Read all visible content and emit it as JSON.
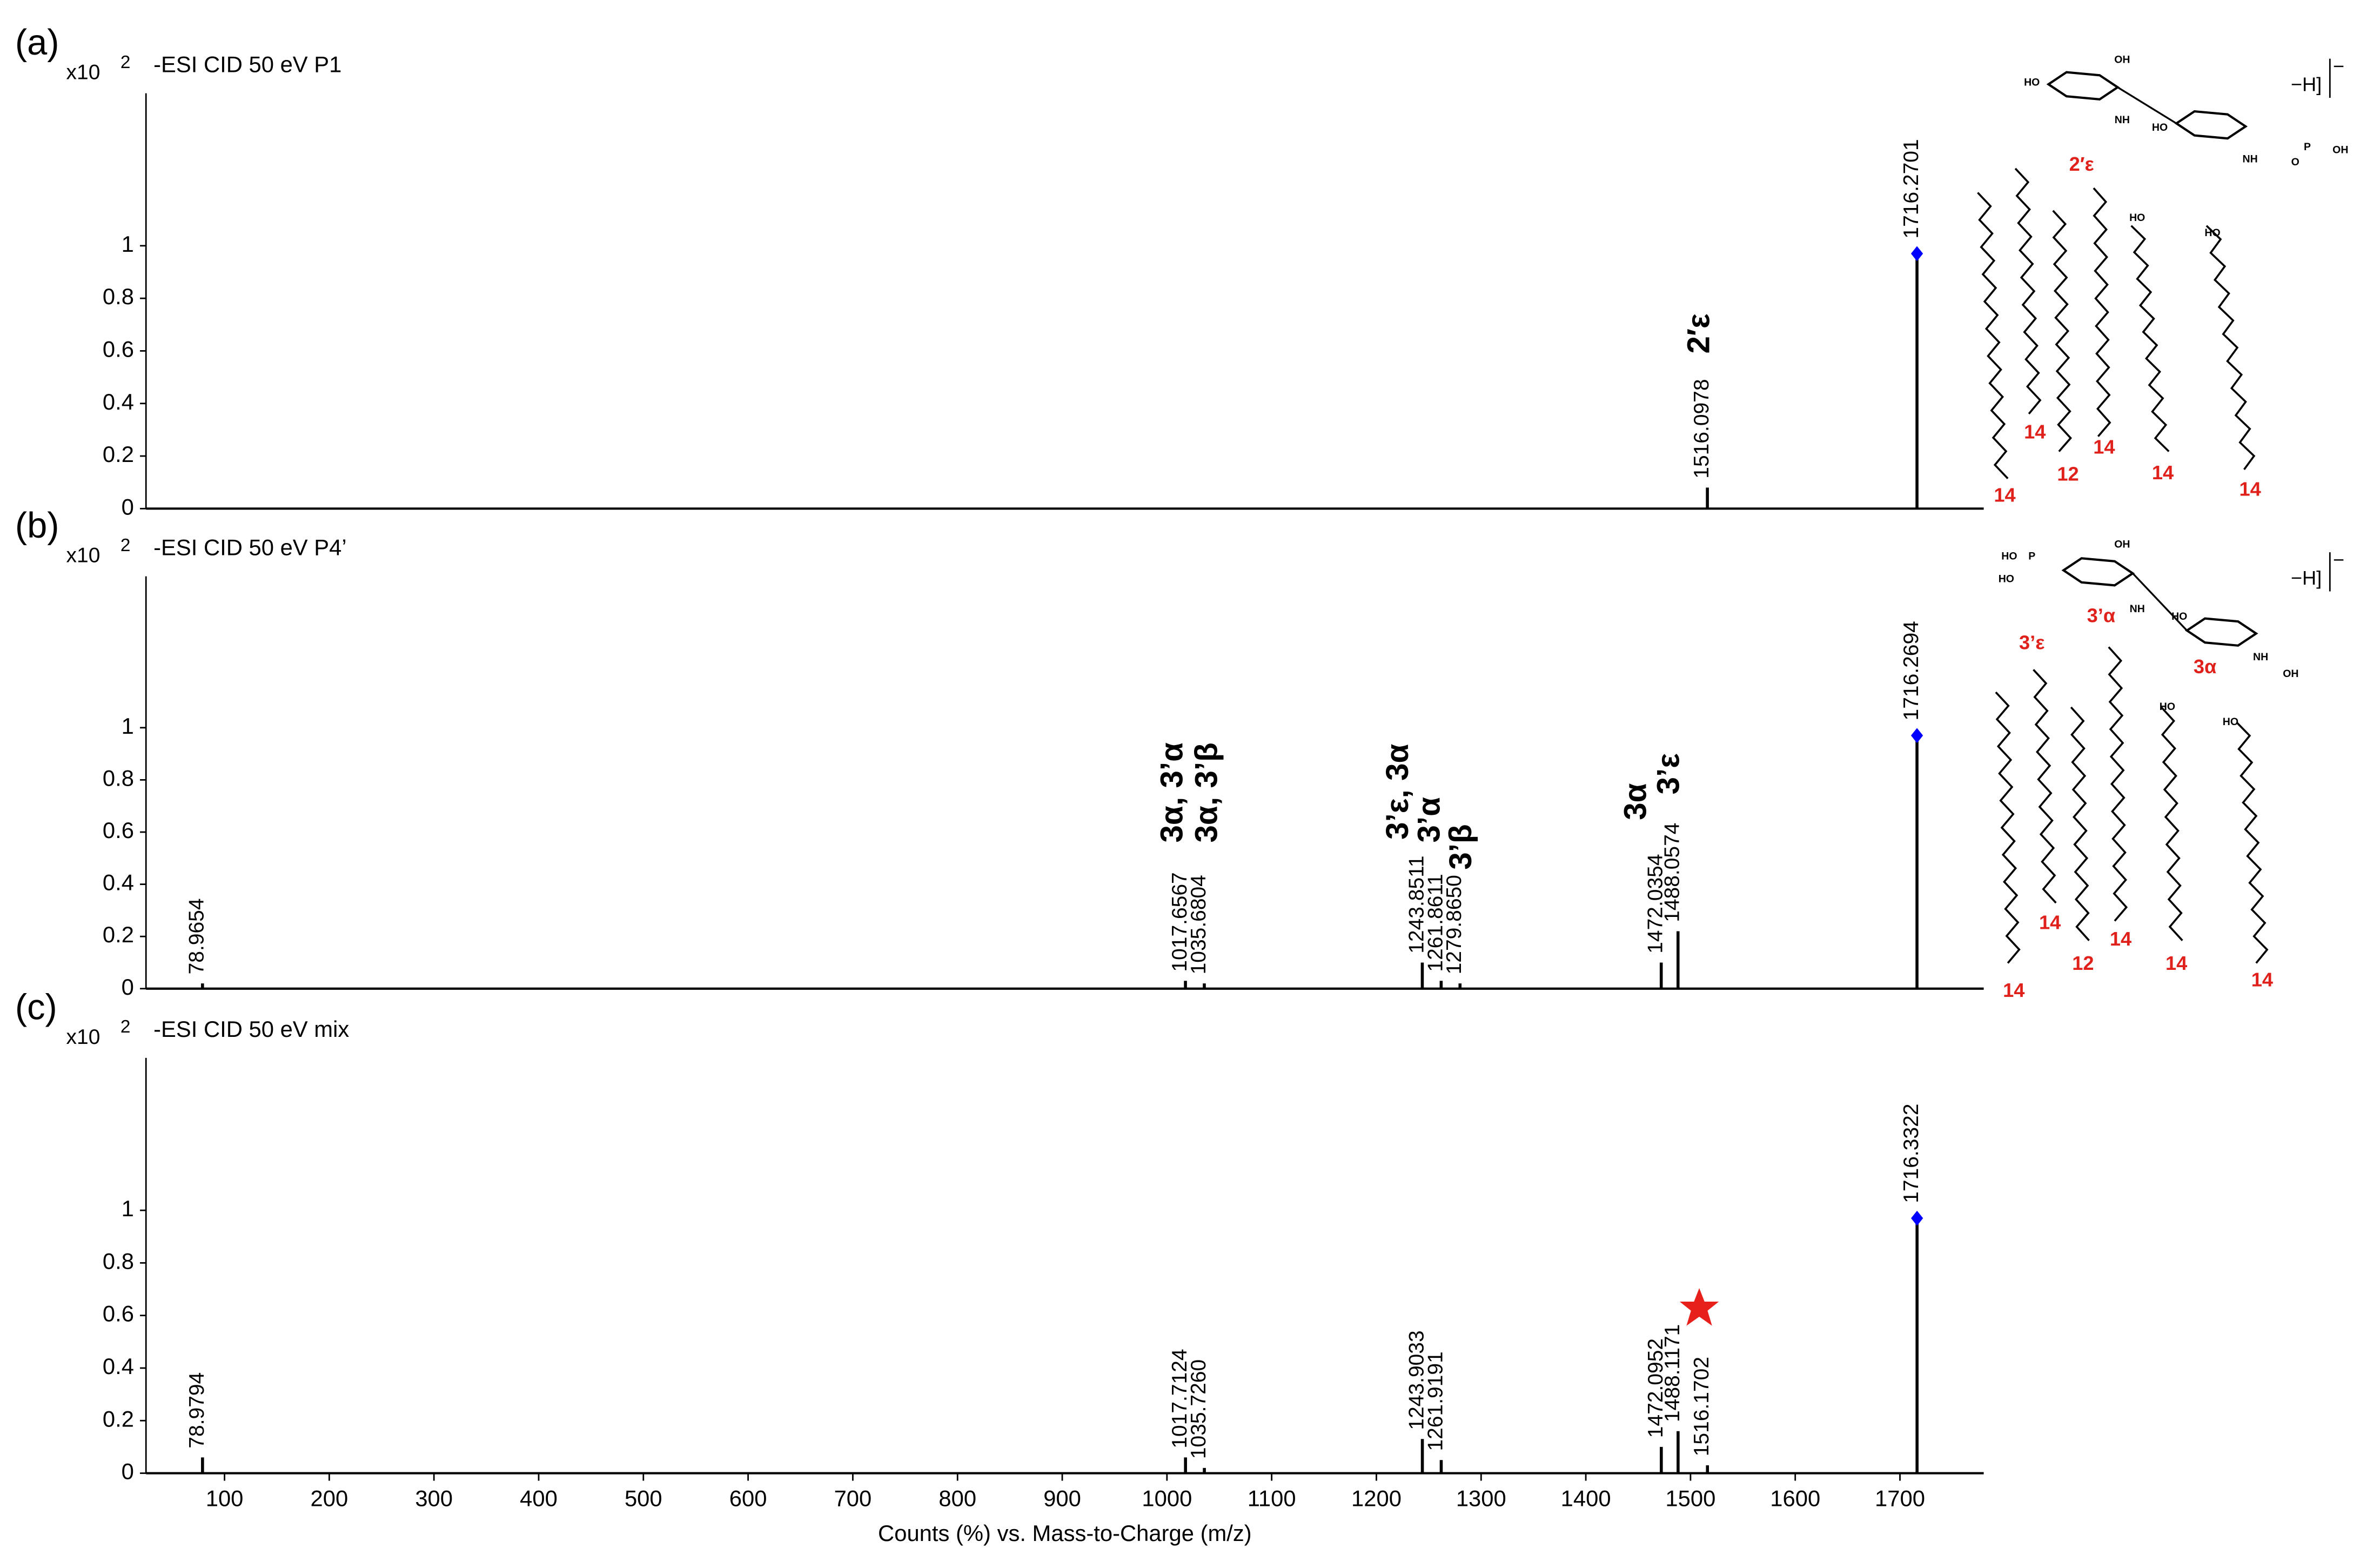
{
  "chart_data": [
    {
      "type": "stem",
      "panel_label": "(a)",
      "scale": "x10",
      "scale_exponent": "2",
      "title": "-ESI CID 50 eV  P1",
      "x": [
        1516.0978,
        1716.2701
      ],
      "values": [
        0.08,
        0.97
      ],
      "peak_labels": [
        "1516.0978",
        "1716.2701"
      ],
      "annotations": [
        "2′ε"
      ],
      "xlim": [
        25,
        1780
      ],
      "ylim": [
        0,
        1.58
      ],
      "yticks": [
        0,
        0.2,
        0.4,
        0.6,
        0.8,
        1
      ],
      "color": "#000000",
      "marker_color": "#0000ff"
    },
    {
      "type": "stem",
      "panel_label": "(b)",
      "scale": "x10",
      "scale_exponent": "2",
      "title": "-ESI CID 50 eV  P4’",
      "x": [
        78.9654,
        1017.6567,
        1035.6804,
        1243.8511,
        1261.8611,
        1279.865,
        1472.0354,
        1488.0574,
        1716.2694
      ],
      "values": [
        0.02,
        0.03,
        0.02,
        0.1,
        0.03,
        0.02,
        0.1,
        0.22,
        0.97
      ],
      "peak_labels": [
        "78.9654",
        "1017.6567",
        "1035.6804",
        "1243.8511",
        "1261.8611",
        "1279.8650",
        "1472.0354",
        "1488.0574",
        "1716.2694"
      ],
      "annotations": [
        "3α, 3’α",
        "3α, 3’β",
        "3’ε, 3α",
        "3’α",
        "3’β",
        "3α",
        "3’ε"
      ],
      "xlim": [
        25,
        1780
      ],
      "ylim": [
        0,
        1.58
      ],
      "yticks": [
        0,
        0.2,
        0.4,
        0.6,
        0.8,
        1
      ],
      "color": "#000000",
      "marker_color": "#0000ff"
    },
    {
      "type": "stem",
      "panel_label": "(c)",
      "scale": "x10",
      "scale_exponent": "2",
      "title": "-ESI CID 50 eV  mix",
      "x": [
        78.9794,
        1017.7124,
        1035.726,
        1243.9033,
        1261.9191,
        1472.0952,
        1488.1171,
        1516.1702,
        1716.3322
      ],
      "values": [
        0.06,
        0.06,
        0.02,
        0.13,
        0.05,
        0.1,
        0.16,
        0.03,
        0.97
      ],
      "peak_labels": [
        "78.9794",
        "1017.7124",
        "1035.7260",
        "1243.9033",
        "1261.9191",
        "1472.0952",
        "1488.1171",
        "1516.1702",
        "1716.3322"
      ],
      "xlabel": "Counts (%) vs. Mass-to-Charge (m/z)",
      "xlim": [
        25,
        1780
      ],
      "ylim": [
        0,
        1.58
      ],
      "yticks": [
        0,
        0.2,
        0.4,
        0.6,
        0.8,
        1
      ],
      "xticks": [
        100,
        200,
        300,
        400,
        500,
        600,
        700,
        800,
        900,
        1000,
        1100,
        1200,
        1300,
        1400,
        1500,
        1600,
        1700
      ],
      "color": "#000000",
      "marker_color": "#0000ff"
    }
  ],
  "structures": [
    {
      "ion": "−H]",
      "ion_sign": "−",
      "labels": [
        "2′ε",
        "14",
        "14",
        "12",
        "14",
        "14",
        "14"
      ],
      "atoms": [
        "HO",
        "OH",
        "NH",
        "HO",
        "NH",
        "O",
        "P",
        "OH",
        "HO",
        "HO"
      ]
    },
    {
      "ion": "−H]",
      "ion_sign": "−",
      "labels": [
        "3’α",
        "3’ε",
        "3α",
        "14",
        "12",
        "14",
        "14",
        "14",
        "14"
      ],
      "atoms": [
        "HO",
        "HO",
        "P",
        "OH",
        "NH",
        "HO",
        "OH",
        "NH",
        "HO",
        "HO"
      ]
    }
  ]
}
